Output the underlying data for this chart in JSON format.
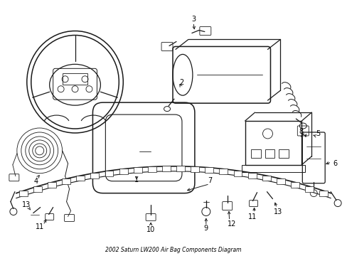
{
  "title": "2002 Saturn LW200 Air Bag Components Diagram",
  "bg_color": "#ffffff",
  "line_color": "#1a1a1a",
  "text_color": "#000000",
  "figsize": [
    4.89,
    3.6
  ],
  "dpi": 100
}
